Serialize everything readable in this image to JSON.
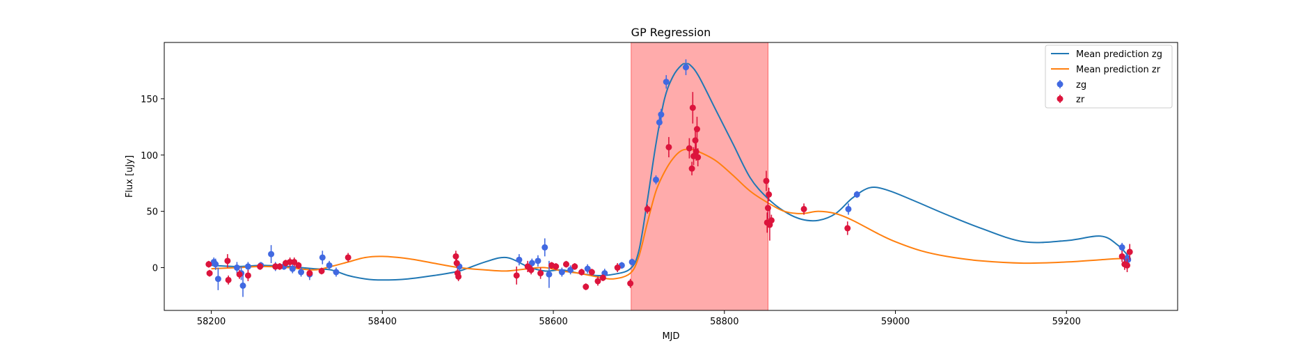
{
  "chart_data": {
    "type": "scatter",
    "title": "GP Regression",
    "xlabel": "MJD",
    "ylabel": "Flux [uJy]",
    "xlim": [
      58145,
      59330
    ],
    "ylim": [
      -38,
      200
    ],
    "xticks": [
      58200,
      58400,
      58600,
      58800,
      59000,
      59200
    ],
    "yticks": [
      0,
      50,
      100,
      150
    ],
    "grid": false,
    "legend_position": "top-right",
    "highlight_band": {
      "x0": 58691,
      "x1": 58851,
      "color": "#ffa6a6"
    },
    "lines": [
      {
        "name": "Mean prediction zg",
        "color": "#1f77b4",
        "x": [
          58200,
          58230,
          58260,
          58290,
          58320,
          58340,
          58360,
          58380,
          58400,
          58430,
          58460,
          58490,
          58520,
          58545,
          58570,
          58590,
          58610,
          58630,
          58650,
          58670,
          58690,
          58700,
          58710,
          58720,
          58730,
          58740,
          58750,
          58755,
          58760,
          58770,
          58790,
          58810,
          58830,
          58850,
          58870,
          58890,
          58910,
          58930,
          58950,
          58970,
          58990,
          59020,
          59060,
          59100,
          59150,
          59200,
          59240,
          59260,
          59275
        ],
        "y": [
          2,
          1,
          2,
          1,
          -1,
          -2,
          -7,
          -10,
          -11,
          -10,
          -7,
          -3,
          5,
          9,
          1,
          -3,
          -2,
          -5,
          -7,
          -6,
          -1,
          15,
          60,
          110,
          150,
          170,
          180,
          181,
          180,
          170,
          140,
          110,
          80,
          62,
          50,
          43,
          42,
          48,
          62,
          71,
          69,
          60,
          47,
          35,
          23,
          24,
          28,
          20,
          8
        ]
      },
      {
        "name": "Mean prediction zr",
        "color": "#ff7f0e",
        "x": [
          58200,
          58230,
          58260,
          58290,
          58320,
          58340,
          58360,
          58380,
          58400,
          58430,
          58460,
          58490,
          58520,
          58545,
          58570,
          58590,
          58610,
          58630,
          58650,
          58670,
          58690,
          58700,
          58710,
          58720,
          58730,
          58740,
          58750,
          58760,
          58770,
          58790,
          58810,
          58830,
          58850,
          58870,
          58890,
          58910,
          58930,
          58950,
          58980,
          59000,
          59030,
          59060,
          59100,
          59150,
          59200,
          59240,
          59260,
          59275
        ],
        "y": [
          -1,
          0,
          1,
          0,
          -2,
          1,
          5,
          9,
          10,
          8,
          4,
          0,
          -2,
          -3,
          -1,
          0,
          -3,
          -5,
          -8,
          -10,
          -5,
          10,
          40,
          68,
          85,
          97,
          104,
          105,
          103,
          95,
          82,
          68,
          58,
          50,
          48,
          50,
          48,
          42,
          30,
          23,
          15,
          10,
          6,
          4,
          5,
          7,
          8,
          8
        ]
      }
    ],
    "scatter_series": [
      {
        "name": "zg",
        "color": "#4169e1",
        "points": [
          {
            "x": 58203,
            "y": 5,
            "e": 4
          },
          {
            "x": 58205,
            "y": 3,
            "e": 5
          },
          {
            "x": 58208,
            "y": -10,
            "e": 10
          },
          {
            "x": 58230,
            "y": 0,
            "e": 5
          },
          {
            "x": 58235,
            "y": -5,
            "e": 6
          },
          {
            "x": 58237,
            "y": -16,
            "e": 10
          },
          {
            "x": 58243,
            "y": 1,
            "e": 4
          },
          {
            "x": 58258,
            "y": 2,
            "e": 3
          },
          {
            "x": 58270,
            "y": 12,
            "e": 8
          },
          {
            "x": 58275,
            "y": 1,
            "e": 4
          },
          {
            "x": 58285,
            "y": 1,
            "e": 3
          },
          {
            "x": 58295,
            "y": -1,
            "e": 4
          },
          {
            "x": 58305,
            "y": -4,
            "e": 4
          },
          {
            "x": 58315,
            "y": -6,
            "e": 5
          },
          {
            "x": 58330,
            "y": 9,
            "e": 6
          },
          {
            "x": 58338,
            "y": 2,
            "e": 4
          },
          {
            "x": 58346,
            "y": -4,
            "e": 4
          },
          {
            "x": 58490,
            "y": 1,
            "e": 4
          },
          {
            "x": 58560,
            "y": 7,
            "e": 5
          },
          {
            "x": 58575,
            "y": 4,
            "e": 4
          },
          {
            "x": 58582,
            "y": 6,
            "e": 5
          },
          {
            "x": 58590,
            "y": 18,
            "e": 8
          },
          {
            "x": 58595,
            "y": -6,
            "e": 12
          },
          {
            "x": 58610,
            "y": -4,
            "e": 4
          },
          {
            "x": 58620,
            "y": -2,
            "e": 4
          },
          {
            "x": 58640,
            "y": -1,
            "e": 4
          },
          {
            "x": 58660,
            "y": -5,
            "e": 4
          },
          {
            "x": 58680,
            "y": 2,
            "e": 3
          },
          {
            "x": 58692,
            "y": 5,
            "e": 3
          },
          {
            "x": 58720,
            "y": 78,
            "e": 4
          },
          {
            "x": 58724,
            "y": 129,
            "e": 5
          },
          {
            "x": 58726,
            "y": 136,
            "e": 5
          },
          {
            "x": 58732,
            "y": 165,
            "e": 6
          },
          {
            "x": 58755,
            "y": 178,
            "e": 7
          },
          {
            "x": 58945,
            "y": 52,
            "e": 5
          },
          {
            "x": 58955,
            "y": 65,
            "e": 3
          },
          {
            "x": 59265,
            "y": 18,
            "e": 4
          },
          {
            "x": 59270,
            "y": 8,
            "e": 4
          },
          {
            "x": 59272,
            "y": 7,
            "e": 4
          }
        ]
      },
      {
        "name": "zr",
        "color": "#dc143c",
        "points": [
          {
            "x": 58197,
            "y": 3,
            "e": 3
          },
          {
            "x": 58198,
            "y": -5,
            "e": 3
          },
          {
            "x": 58219,
            "y": 6,
            "e": 6
          },
          {
            "x": 58220,
            "y": -11,
            "e": 4
          },
          {
            "x": 58233,
            "y": -6,
            "e": 4
          },
          {
            "x": 58243,
            "y": -7,
            "e": 5
          },
          {
            "x": 58257,
            "y": 1,
            "e": 3
          },
          {
            "x": 58275,
            "y": 1,
            "e": 3
          },
          {
            "x": 58280,
            "y": 1,
            "e": 3
          },
          {
            "x": 58287,
            "y": 4,
            "e": 3
          },
          {
            "x": 58292,
            "y": 5,
            "e": 4
          },
          {
            "x": 58297,
            "y": 5,
            "e": 4
          },
          {
            "x": 58302,
            "y": 2,
            "e": 3
          },
          {
            "x": 58315,
            "y": -5,
            "e": 3
          },
          {
            "x": 58329,
            "y": -3,
            "e": 3
          },
          {
            "x": 58360,
            "y": 9,
            "e": 4
          },
          {
            "x": 58486,
            "y": 10,
            "e": 5
          },
          {
            "x": 58487,
            "y": 4,
            "e": 4
          },
          {
            "x": 58488,
            "y": -5,
            "e": 4
          },
          {
            "x": 58489,
            "y": -8,
            "e": 4
          },
          {
            "x": 58557,
            "y": -7,
            "e": 8
          },
          {
            "x": 58570,
            "y": 1,
            "e": 5
          },
          {
            "x": 58574,
            "y": -2,
            "e": 4
          },
          {
            "x": 58585,
            "y": -5,
            "e": 5
          },
          {
            "x": 58598,
            "y": 2,
            "e": 3
          },
          {
            "x": 58603,
            "y": 1,
            "e": 3
          },
          {
            "x": 58615,
            "y": 3,
            "e": 3
          },
          {
            "x": 58625,
            "y": 1,
            "e": 3
          },
          {
            "x": 58633,
            "y": -4,
            "e": 3
          },
          {
            "x": 58638,
            "y": -17,
            "e": 3
          },
          {
            "x": 58645,
            "y": -4,
            "e": 3
          },
          {
            "x": 58652,
            "y": -12,
            "e": 4
          },
          {
            "x": 58658,
            "y": -9,
            "e": 3
          },
          {
            "x": 58675,
            "y": 0,
            "e": 4
          },
          {
            "x": 58690,
            "y": -14,
            "e": 4
          },
          {
            "x": 58710,
            "y": 52,
            "e": 4
          },
          {
            "x": 58735,
            "y": 107,
            "e": 9
          },
          {
            "x": 58759,
            "y": 106,
            "e": 9
          },
          {
            "x": 58762,
            "y": 88,
            "e": 6
          },
          {
            "x": 58763,
            "y": 142,
            "e": 14
          },
          {
            "x": 58764,
            "y": 99,
            "e": 8
          },
          {
            "x": 58766,
            "y": 113,
            "e": 9
          },
          {
            "x": 58767,
            "y": 103,
            "e": 8
          },
          {
            "x": 58768,
            "y": 123,
            "e": 11
          },
          {
            "x": 58769,
            "y": 98,
            "e": 8
          },
          {
            "x": 58849,
            "y": 77,
            "e": 9
          },
          {
            "x": 58850,
            "y": 40,
            "e": 9
          },
          {
            "x": 58851,
            "y": 53,
            "e": 10
          },
          {
            "x": 58852,
            "y": 65,
            "e": 6
          },
          {
            "x": 58853,
            "y": 38,
            "e": 14
          },
          {
            "x": 58855,
            "y": 42,
            "e": 5
          },
          {
            "x": 58893,
            "y": 52,
            "e": 5
          },
          {
            "x": 58944,
            "y": 35,
            "e": 6
          },
          {
            "x": 59265,
            "y": 10,
            "e": 5
          },
          {
            "x": 59268,
            "y": 3,
            "e": 5
          },
          {
            "x": 59271,
            "y": 2,
            "e": 6
          },
          {
            "x": 59274,
            "y": 14,
            "e": 7
          }
        ]
      }
    ],
    "legend": [
      "Mean prediction zg",
      "Mean prediction zr",
      "zg",
      "zr"
    ]
  }
}
